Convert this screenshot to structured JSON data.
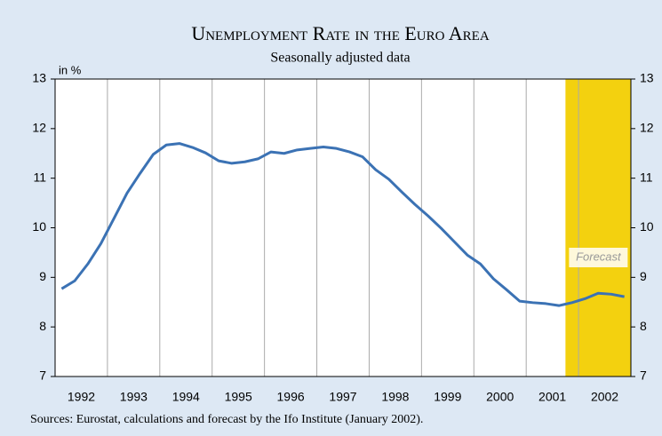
{
  "chart_data": {
    "type": "line",
    "title": "Unemployment Rate in the Euro Area",
    "subtitle": "Seasonally adjusted data",
    "y_unit_label": "in %",
    "source": "Sources: Eurostat, calculations and forecast by the Ifo Institute (January 2002).",
    "x": [
      1992.125,
      1992.375,
      1992.625,
      1992.875,
      1993.125,
      1993.375,
      1993.625,
      1993.875,
      1994.125,
      1994.375,
      1994.625,
      1994.875,
      1995.125,
      1995.375,
      1995.625,
      1995.875,
      1996.125,
      1996.375,
      1996.625,
      1996.875,
      1997.125,
      1997.375,
      1997.625,
      1997.875,
      1998.125,
      1998.375,
      1998.625,
      1998.875,
      1999.125,
      1999.375,
      1999.625,
      1999.875,
      2000.125,
      2000.375,
      2000.625,
      2000.875,
      2001.125,
      2001.375,
      2001.625,
      2001.875,
      2002.125,
      2002.375,
      2002.625,
      2002.875
    ],
    "series": [
      {
        "name": "Unemployment rate",
        "color": "#3b72b4",
        "values": [
          8.77,
          8.93,
          9.27,
          9.68,
          10.19,
          10.7,
          11.1,
          11.48,
          11.67,
          11.7,
          11.62,
          11.51,
          11.35,
          11.3,
          11.33,
          11.39,
          11.53,
          11.5,
          11.57,
          11.6,
          11.63,
          11.6,
          11.53,
          11.43,
          11.17,
          10.98,
          10.72,
          10.47,
          10.24,
          9.99,
          9.72,
          9.45,
          9.27,
          8.97,
          8.75,
          8.52,
          8.49,
          8.47,
          8.43,
          8.49,
          8.57,
          8.68,
          8.66,
          8.61
        ]
      }
    ],
    "year_labels": [
      1992,
      1993,
      1994,
      1995,
      1996,
      1997,
      1998,
      1999,
      2000,
      2001,
      2002
    ],
    "xlim": [
      1992,
      2003
    ],
    "xticks": [
      1993,
      1994,
      1995,
      1996,
      1997,
      1998,
      1999,
      2000,
      2001,
      2002
    ],
    "ylim": [
      7,
      13
    ],
    "yticks": [
      7,
      8,
      9,
      10,
      11,
      12,
      13
    ],
    "forecast": {
      "label": "Forecast",
      "start": 2001.75,
      "end": 2003,
      "color": "#f3d10f"
    },
    "grid": true
  }
}
